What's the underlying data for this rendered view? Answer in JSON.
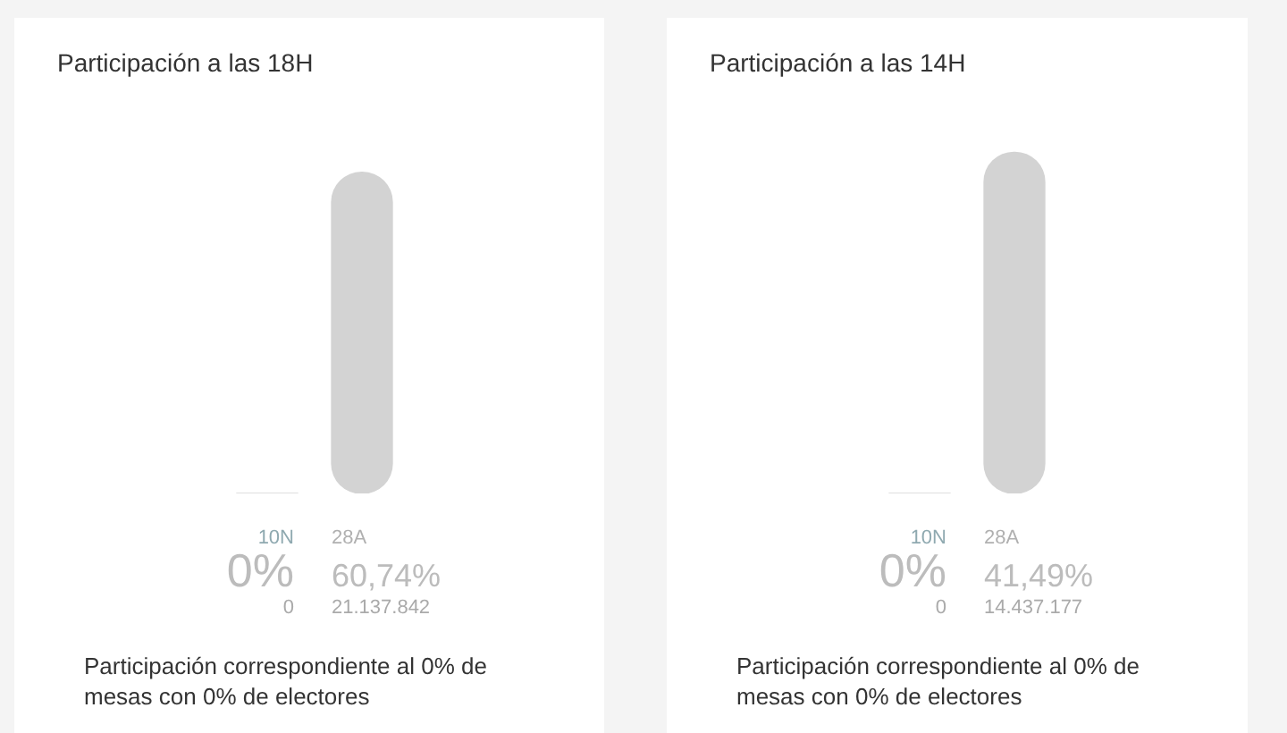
{
  "chart_data": [
    {
      "type": "bar",
      "title": "Participación a las 18H",
      "categories": [
        "10N",
        "28A"
      ],
      "values": [
        0,
        60.74
      ],
      "color": "#d3d3d3",
      "value_labels": [
        "0%",
        "60,74%"
      ],
      "tick_labels": false,
      "annotations": [
        "0",
        "21.137.842",
        "Participación correspondiente al 0% de mesas con 0% de electores"
      ]
    },
    {
      "type": "bar",
      "title": "Participación a las 14H",
      "categories": [
        "10N",
        "28A"
      ],
      "values": [
        0,
        41.49
      ],
      "color": "#d3d3d3",
      "value_labels": [
        "0%",
        "41,49%"
      ],
      "tick_labels": false,
      "annotations": [
        "0",
        "14.437.177",
        "Participación correspondiente al 0% de mesas con 0% de electores"
      ]
    }
  ]
}
